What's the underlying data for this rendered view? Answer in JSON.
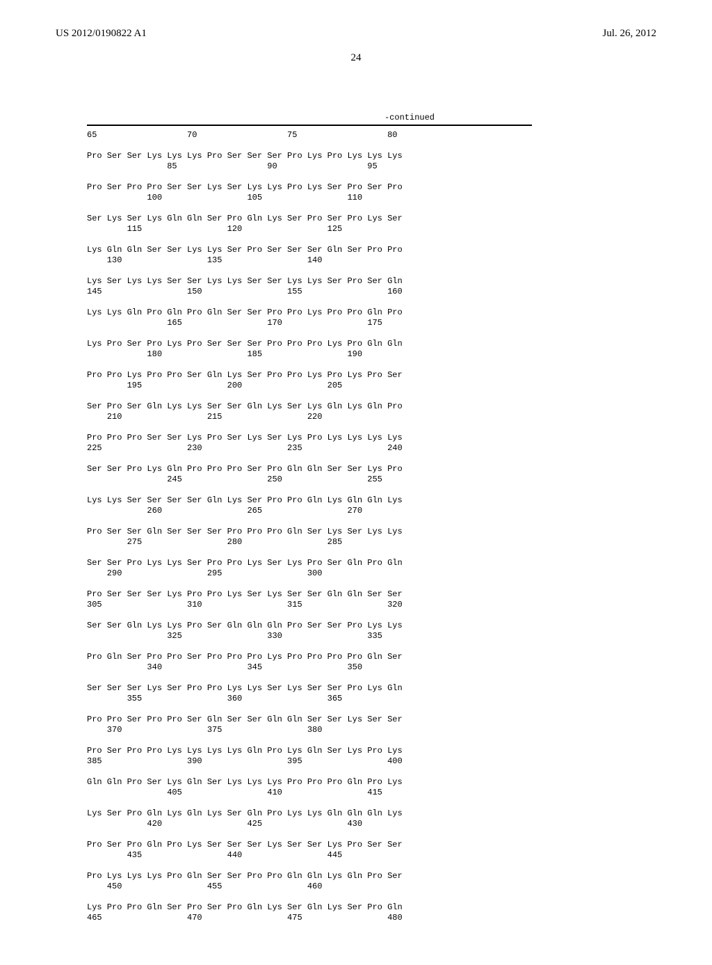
{
  "header": {
    "pub_id": "US 2012/0190822 A1",
    "pub_date": "Jul. 26, 2012"
  },
  "page_number": "24",
  "continued_label": "-continued",
  "sequence_lines": [
    "65                  70                  75                  80",
    "",
    "Pro Ser Ser Lys Lys Lys Pro Ser Ser Ser Pro Lys Pro Lys Lys Lys",
    "                85                  90                  95",
    "",
    "Pro Ser Pro Pro Ser Ser Lys Ser Lys Lys Pro Lys Ser Pro Ser Pro",
    "            100                 105                 110",
    "",
    "Ser Lys Ser Lys Gln Gln Ser Pro Gln Lys Ser Pro Ser Pro Lys Ser",
    "        115                 120                 125",
    "",
    "Lys Gln Gln Ser Ser Lys Lys Ser Pro Ser Ser Ser Gln Ser Pro Pro",
    "    130                 135                 140",
    "",
    "Lys Ser Lys Lys Ser Ser Lys Lys Ser Ser Lys Lys Ser Pro Ser Gln",
    "145                 150                 155                 160",
    "",
    "Lys Lys Gln Pro Gln Pro Gln Ser Ser Pro Pro Lys Pro Pro Gln Pro",
    "                165                 170                 175",
    "",
    "Lys Pro Ser Pro Lys Pro Ser Ser Ser Pro Pro Pro Lys Pro Gln Gln",
    "            180                 185                 190",
    "",
    "Pro Pro Lys Pro Pro Ser Gln Lys Ser Pro Pro Lys Pro Lys Pro Ser",
    "        195                 200                 205",
    "",
    "Ser Pro Ser Gln Lys Lys Ser Ser Gln Lys Ser Lys Gln Lys Gln Pro",
    "    210                 215                 220",
    "",
    "Pro Pro Pro Ser Ser Lys Pro Ser Lys Ser Lys Pro Lys Lys Lys Lys",
    "225                 230                 235                 240",
    "",
    "Ser Ser Pro Lys Gln Pro Pro Pro Ser Pro Gln Gln Ser Ser Lys Pro",
    "                245                 250                 255",
    "",
    "Lys Lys Ser Ser Ser Ser Gln Lys Ser Pro Pro Gln Lys Gln Gln Lys",
    "            260                 265                 270",
    "",
    "Pro Ser Ser Gln Ser Ser Ser Pro Pro Pro Gln Ser Lys Ser Lys Lys",
    "        275                 280                 285",
    "",
    "Ser Ser Pro Lys Lys Ser Pro Pro Lys Ser Lys Pro Ser Gln Pro Gln",
    "    290                 295                 300",
    "",
    "Pro Ser Ser Ser Lys Pro Pro Lys Ser Lys Ser Ser Gln Gln Ser Ser",
    "305                 310                 315                 320",
    "",
    "Ser Ser Gln Lys Lys Pro Ser Gln Gln Gln Pro Ser Ser Pro Lys Lys",
    "                325                 330                 335",
    "",
    "Pro Gln Ser Pro Pro Ser Pro Pro Pro Lys Pro Pro Pro Pro Gln Ser",
    "            340                 345                 350",
    "",
    "Ser Ser Ser Lys Ser Pro Pro Lys Lys Ser Lys Ser Ser Pro Lys Gln",
    "        355                 360                 365",
    "",
    "Pro Pro Ser Pro Pro Ser Gln Ser Ser Gln Gln Ser Ser Lys Ser Ser",
    "    370                 375                 380",
    "",
    "Pro Ser Pro Pro Lys Lys Lys Lys Gln Pro Lys Gln Ser Lys Pro Lys",
    "385                 390                 395                 400",
    "",
    "Gln Gln Pro Ser Lys Gln Ser Lys Lys Lys Pro Pro Pro Gln Pro Lys",
    "                405                 410                 415",
    "",
    "Lys Ser Pro Gln Lys Gln Lys Ser Gln Pro Lys Lys Gln Gln Gln Lys",
    "            420                 425                 430",
    "",
    "Pro Ser Pro Gln Pro Lys Ser Ser Ser Lys Ser Ser Lys Pro Ser Ser",
    "        435                 440                 445",
    "",
    "Pro Lys Lys Lys Pro Gln Ser Ser Pro Pro Gln Gln Lys Gln Pro Ser",
    "    450                 455                 460",
    "",
    "Lys Pro Pro Gln Ser Pro Ser Pro Gln Lys Ser Gln Lys Ser Pro Gln",
    "465                 470                 475                 480"
  ]
}
